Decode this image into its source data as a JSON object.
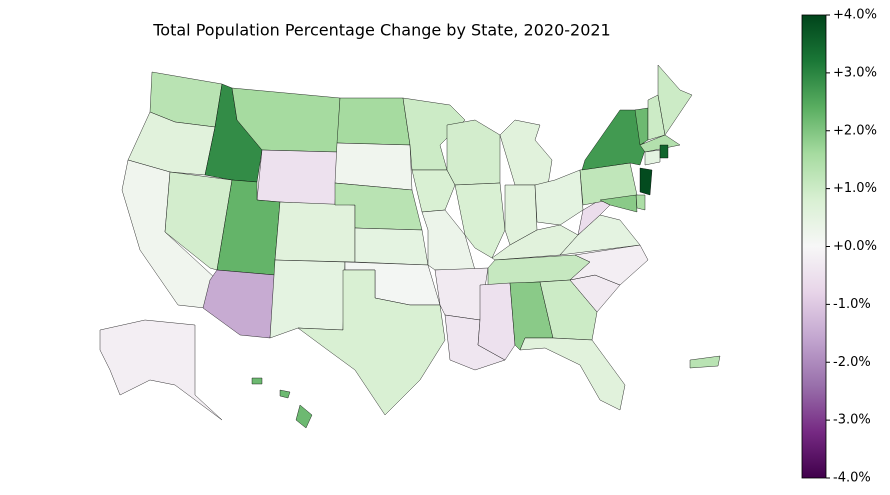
{
  "chart_data": {
    "type": "choropleth",
    "title": "Total Population Percentage Change by State, 2020-2021",
    "colormap": "PRGn",
    "clim": [
      -4,
      4
    ],
    "cticks": [
      {
        "value": -4,
        "label": "-4.0%"
      },
      {
        "value": -3,
        "label": "-3.0%"
      },
      {
        "value": -2,
        "label": "-2.0%"
      },
      {
        "value": -1,
        "label": "-1.0%"
      },
      {
        "value": 0,
        "label": "+0.0%"
      },
      {
        "value": 1,
        "label": "+1.0%"
      },
      {
        "value": 2,
        "label": "+2.0%"
      },
      {
        "value": 3,
        "label": "+3.0%"
      },
      {
        "value": 4,
        "label": "+4.0%"
      }
    ],
    "values": [
      1.3,
      0.6,
      0.2,
      0.9,
      2.9,
      1.6,
      -0.5,
      2.3,
      -1.5,
      0.6,
      0.5,
      1.6,
      0.2,
      1.3,
      0.5,
      0.1,
      0.8,
      1.0,
      0.8,
      0.3,
      -0.3,
      -0.4,
      0.9,
      0.8,
      0.6,
      0.6,
      0.5,
      0.6,
      1.1,
      -0.5,
      1.9,
      1.0,
      0.6,
      -0.3,
      -0.2,
      0.5,
      -0.6,
      1.2,
      2.7,
      2.2,
      1.0,
      1.0,
      1.4,
      0.5,
      3.5,
      3.9,
      1.5,
      1.9,
      -0.2,
      2.2,
      1.3
    ]
  }
}
